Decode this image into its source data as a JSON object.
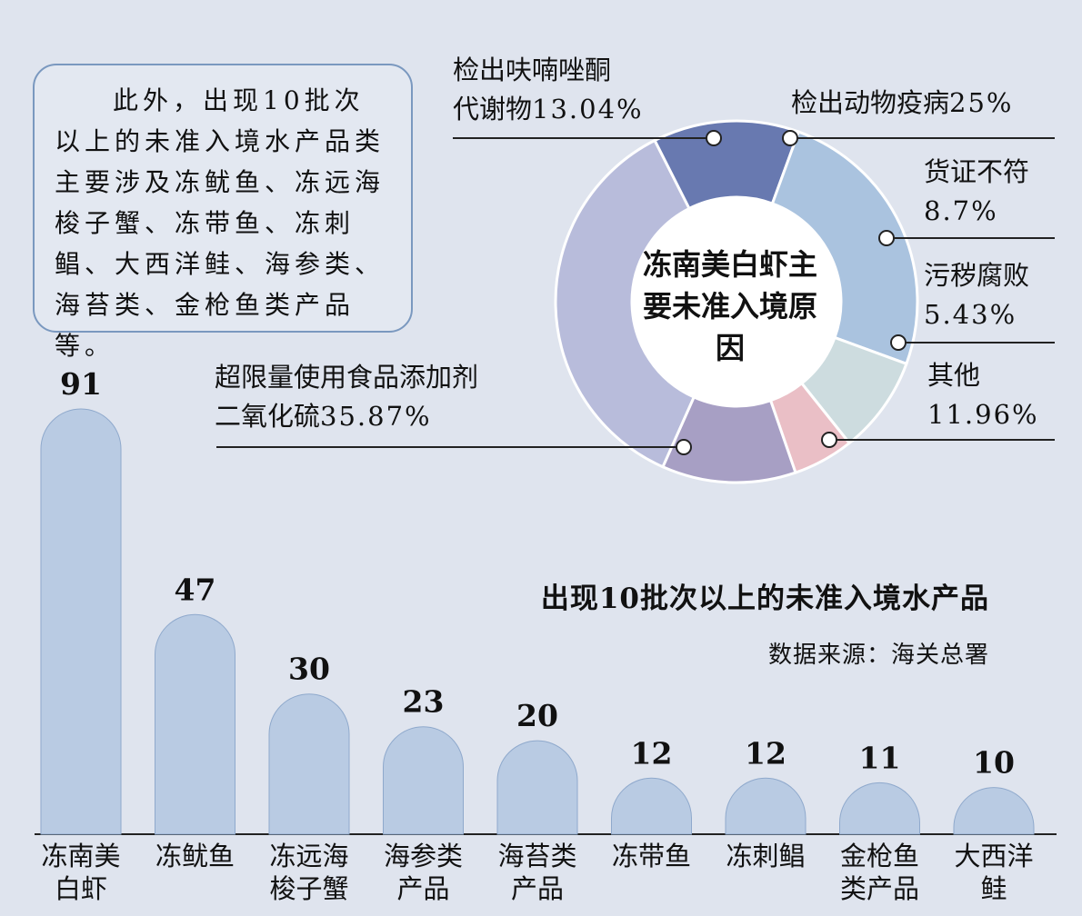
{
  "note": {
    "text": "此外，出现10批次以上的未准入境水产品类主要涉及冻鱿鱼、冻远海梭子蟹、冻带鱼、冻刺鲳、大西洋鲑、海参类、海苔类、金枪鱼类产品等。"
  },
  "chart_data": [
    {
      "type": "pie",
      "center_label": "冻南美白虾主要未准入境原因",
      "slices": [
        {
          "label": "超限量使用食品添加剂二氧化硫",
          "value": 35.87,
          "color": "#b8bcdb"
        },
        {
          "label": "检出呋喃唑酮代谢物",
          "value": 13.04,
          "color": "#6879b0"
        },
        {
          "label": "检出动物疫病",
          "value": 25,
          "color": "#aac3df"
        },
        {
          "label": "货证不符",
          "value": 8.7,
          "color": "#cddcdf"
        },
        {
          "label": "污秽腐败",
          "value": 5.43,
          "color": "#eabfc6"
        },
        {
          "label": "其他",
          "value": 11.96,
          "color": "#a79fc4"
        }
      ],
      "callouts": {
        "furazolidone": {
          "line1": "检出呋喃唑酮",
          "line2": "代谢物",
          "pct": "13.04%"
        },
        "disease": {
          "line1": "检出动物疫病",
          "pct": "25%"
        },
        "mismatch": {
          "line1": "货证不符",
          "pct": "8.7%"
        },
        "spoil": {
          "line1": "污秽腐败",
          "pct": "5.43%"
        },
        "other": {
          "line1": "其他",
          "pct": "11.96%"
        },
        "so2": {
          "line1": "超限量使用食品添加剂",
          "line2": "二氧化硫",
          "pct": "35.87%"
        }
      }
    },
    {
      "type": "bar",
      "title": "出现10批次以上的未准入境水产品",
      "source": "数据来源：海关总署",
      "categories": [
        "冻南美白虾",
        "冻鱿鱼",
        "冻远海梭子蟹",
        "海参类产品",
        "海苔类产品",
        "冻带鱼",
        "冻刺鲳",
        "金枪鱼类产品",
        "大西洋鲑"
      ],
      "category_lines": [
        [
          "冻南美",
          "白虾"
        ],
        [
          "冻鱿鱼"
        ],
        [
          "冻远海",
          "梭子蟹"
        ],
        [
          "海参类",
          "产品"
        ],
        [
          "海苔类",
          "产品"
        ],
        [
          "冻带鱼"
        ],
        [
          "冻刺鲳"
        ],
        [
          "金枪鱼",
          "类产品"
        ],
        [
          "大西洋",
          "鲑"
        ]
      ],
      "values": [
        91,
        47,
        30,
        23,
        20,
        12,
        12,
        11,
        10
      ],
      "bar_color": "#b9cbe3"
    }
  ]
}
